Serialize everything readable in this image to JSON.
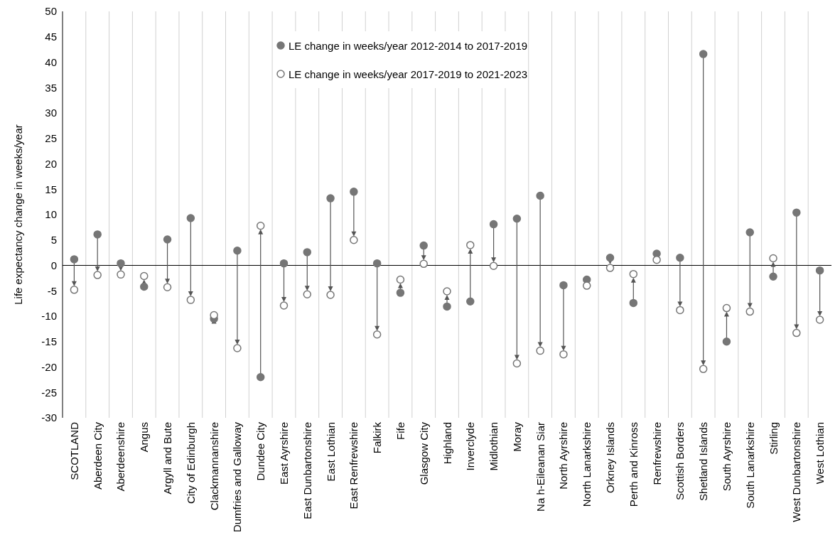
{
  "chart_data": {
    "type": "scatter",
    "ylabel": "Life expectancy  change in weeks/year",
    "categories": [
      "SCOTLAND",
      "Aberdeen City",
      "Aberdeenshire",
      "Angus",
      "Argyll and Bute",
      "City of Edinburgh",
      "Clackmannanshire",
      "Dumfries and Galloway",
      "Dundee City",
      "East Ayrshire",
      "East Dunbartonshire",
      "East Lothian",
      "East Renfrewshire",
      "Falkirk",
      "Fife",
      "Glasgow City",
      "Highland",
      "Inverclyde",
      "Midlothian",
      "Moray",
      "Na h-Eileanan Siar",
      "North Ayrshire",
      "North Lanarkshire",
      "Orkney Islands",
      "Perth and Kinross",
      "Renfrewshire",
      "Scottish Borders",
      "Shetland Islands",
      "South Ayrshire",
      "South Lanarkshire",
      "Stirling",
      "West Dunbartonshire",
      "West Lothian"
    ],
    "series": [
      {
        "name": "LE change in weeks/year 2012-2014 to 2017-2019",
        "color": "#767676",
        "marker": "circle",
        "values": [
          1.2,
          6.1,
          0.4,
          -4.2,
          5.1,
          9.3,
          -10.5,
          2.9,
          -22,
          0.4,
          2.6,
          13.2,
          14.5,
          0.4,
          -5.4,
          3.9,
          -8.1,
          -7.1,
          8.1,
          9.2,
          13.7,
          -3.9,
          -2.8,
          1.5,
          -7.4,
          2.3,
          1.5,
          41.6,
          -15,
          6.5,
          -2.2,
          10.4,
          -1
        ]
      },
      {
        "name": "LE change in weeks/year 2017-2019 to 2021-2023",
        "color": "#767676",
        "marker": "open circle",
        "values": [
          -4.8,
          -1.9,
          -1.8,
          -2.1,
          -4.3,
          -6.8,
          -9.8,
          -16.3,
          7.8,
          -7.9,
          -5.7,
          -5.8,
          5,
          -13.6,
          -2.8,
          0.3,
          -5.1,
          4,
          -0.1,
          -19.3,
          -16.8,
          -17.5,
          -4,
          -0.5,
          -1.7,
          1.1,
          -8.8,
          -20.4,
          -8.4,
          -9.1,
          1.4,
          -13.3,
          -10.7
        ]
      }
    ],
    "ylim": [
      -30,
      50
    ],
    "yticks": [
      -30,
      -25,
      -20,
      -15,
      -10,
      -5,
      0,
      5,
      10,
      15,
      20,
      25,
      30,
      35,
      40,
      45,
      50
    ],
    "ref_lines": [
      {
        "axis": "y",
        "value": 0,
        "color": "#000000"
      }
    ],
    "grid": "x",
    "legend": "top"
  }
}
